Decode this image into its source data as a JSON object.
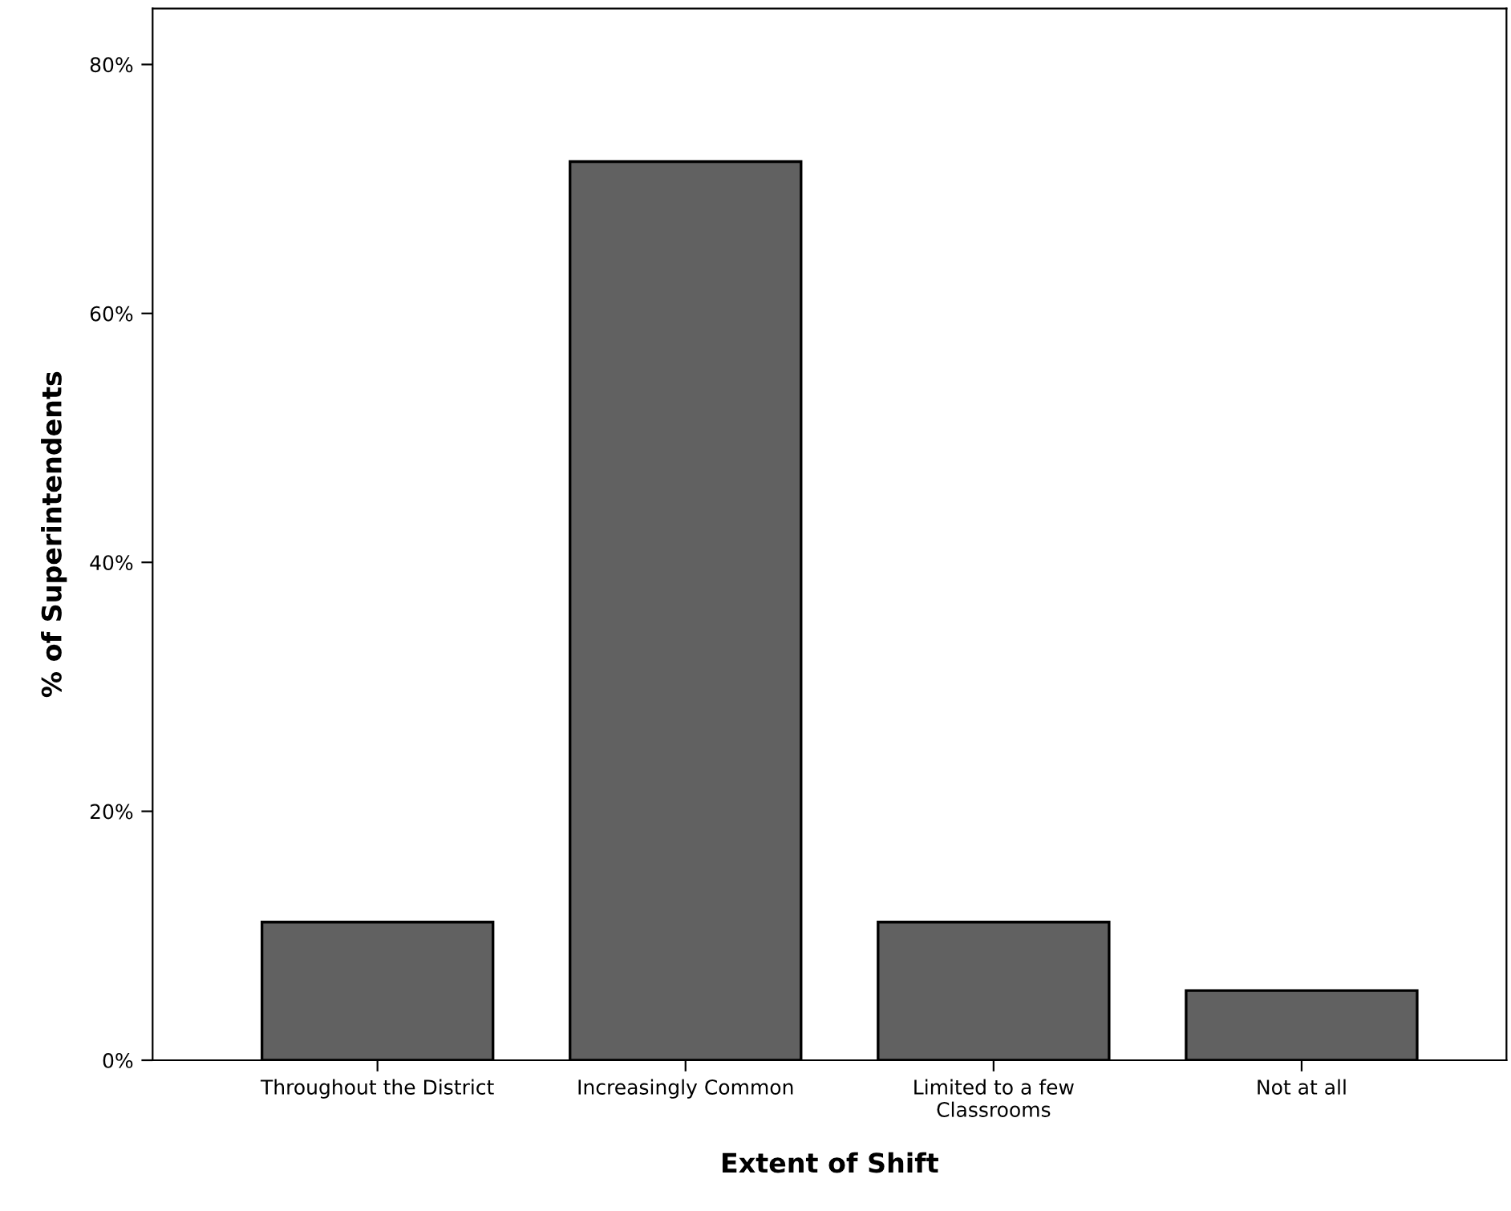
{
  "chart_data": {
    "type": "bar",
    "xlabel": "Extent of Shift",
    "ylabel": "% of Superintendents",
    "categories": [
      "Throughout the District",
      "Increasingly Common",
      "Limited to a few\nClassrooms",
      "Not at all"
    ],
    "values": [
      11.1,
      72.2,
      11.1,
      5.6
    ],
    "color": "#616161",
    "ylim": [
      0,
      84.5
    ],
    "yticks": [
      {
        "value": 0,
        "label": "0%"
      },
      {
        "value": 20,
        "label": "20%"
      },
      {
        "value": 40,
        "label": "40%"
      },
      {
        "value": 60,
        "label": "60%"
      },
      {
        "value": 80,
        "label": "80%"
      }
    ],
    "grid": false,
    "legend": false
  }
}
